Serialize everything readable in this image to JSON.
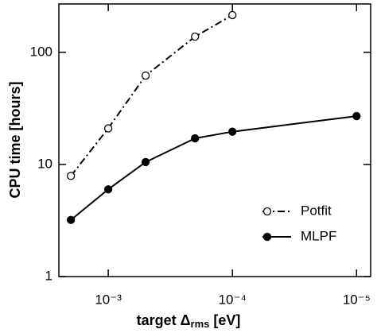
{
  "chart_data": {
    "type": "line",
    "xlabel": [
      "target Δ",
      "rms",
      " [eV]"
    ],
    "ylabel": "CPU time [hours]",
    "x": [
      0.002,
      0.001,
      0.0005,
      0.0002,
      0.0001,
      1e-05
    ],
    "series": [
      {
        "name": "Potfit",
        "color": "#000000",
        "dashed": true,
        "marker": "open",
        "values": [
          7.9,
          21,
          62,
          138,
          215,
          null
        ]
      },
      {
        "name": "MLPF",
        "color": "#000000",
        "dashed": false,
        "marker": "filled",
        "values": [
          3.2,
          6.0,
          10.5,
          17.1,
          19.6,
          27
        ]
      }
    ],
    "xscale": "log",
    "yscale": "log",
    "xlim": [
      0.0025,
      7.7e-06
    ],
    "ylim": [
      1,
      270
    ],
    "xticks": [
      {
        "value": 0.001,
        "label": "10⁻³"
      },
      {
        "value": 0.0001,
        "label": "10⁻⁴"
      },
      {
        "value": 1e-05,
        "label": "10⁻⁵"
      }
    ],
    "yticks": [
      1,
      10,
      100
    ],
    "legend": "lower right"
  }
}
